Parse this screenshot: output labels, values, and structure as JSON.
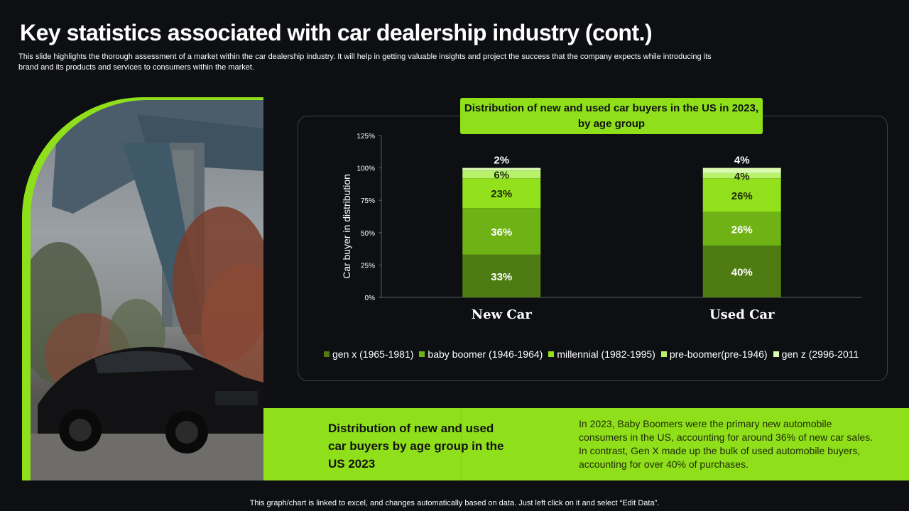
{
  "header": {
    "title": "Key statistics associated with car dealership industry (cont.)",
    "subtitle": "This slide highlights the thorough assessment of a market within the car dealership industry. It will help in getting valuable insights and project the success that the company expects while introducing its brand and its products and services to consumers within the market."
  },
  "photo": {
    "icon": "car-photo"
  },
  "colors": {
    "accent": "#8fe01a",
    "series": [
      "#4e7c12",
      "#6fb216",
      "#93e01c",
      "#b8f26a",
      "#d9fbb0"
    ]
  },
  "chart_data": {
    "type": "bar",
    "stacked": true,
    "title": "Distribution of new and used car buyers in the US in 2023, by age group",
    "xlabel": "",
    "ylabel": "Car buyer in distribution",
    "ylim": [
      0,
      125
    ],
    "yticks": [
      "0%",
      "25%",
      "50%",
      "75%",
      "100%",
      "125%"
    ],
    "categories": [
      "New Car",
      "Used Car"
    ],
    "series": [
      {
        "name": "gen x (1965-1981)",
        "values": [
          33,
          40
        ],
        "labels": [
          "33%",
          "40%"
        ]
      },
      {
        "name": "baby boomer (1946-1964)",
        "values": [
          36,
          26
        ],
        "labels": [
          "36%",
          "26%"
        ]
      },
      {
        "name": "millennial (1982-1995)",
        "values": [
          23,
          26
        ],
        "labels": [
          "23%",
          "26%"
        ]
      },
      {
        "name": "pre-boomer(pre-1946)",
        "values": [
          6,
          4
        ],
        "labels": [
          "6%",
          "4%"
        ]
      },
      {
        "name": "gen z (2996-2011",
        "values": [
          2,
          4
        ],
        "labels": [
          "2%",
          "4%"
        ]
      }
    ],
    "legend": "bottom",
    "grid": false
  },
  "summary": {
    "heading": "Distribution of new and used car buyers by age group in the US 2023",
    "text": "In 2023, Baby Boomers were the primary new automobile consumers in the US, accounting for around 36% of new car sales. In contrast, Gen X made up the bulk of used automobile buyers, accounting for over 40% of purchases."
  },
  "footnote": "This graph/chart is linked to excel, and changes automatically based on data. Just left click on it and select “Edit Data”."
}
